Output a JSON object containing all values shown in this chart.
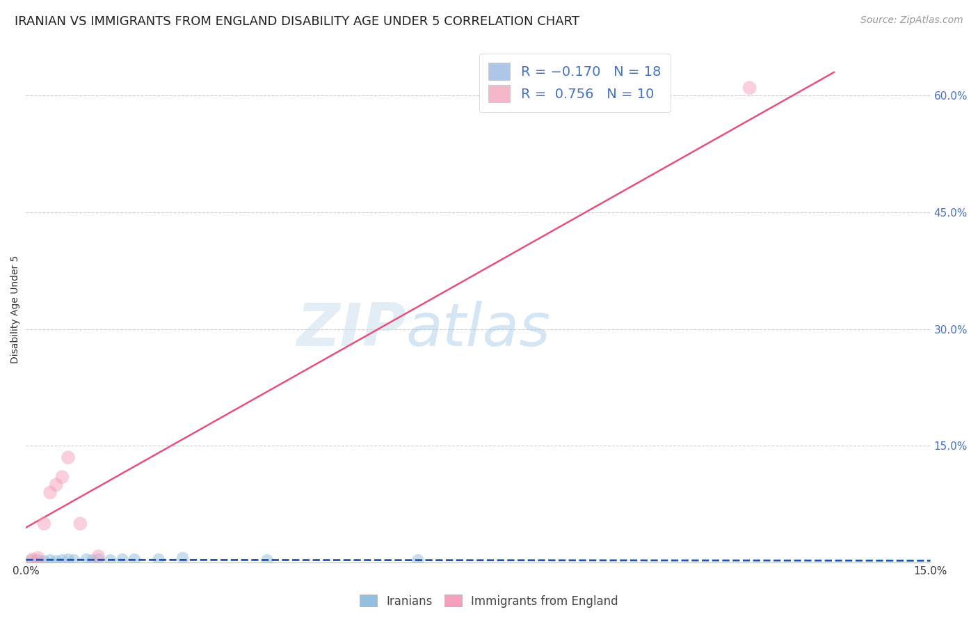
{
  "title": "IRANIAN VS IMMIGRANTS FROM ENGLAND DISABILITY AGE UNDER 5 CORRELATION CHART",
  "source": "Source: ZipAtlas.com",
  "ylabel": "Disability Age Under 5",
  "xlim": [
    0.0,
    0.15
  ],
  "ylim": [
    0.0,
    0.65
  ],
  "yticks": [
    0.0,
    0.15,
    0.3,
    0.45,
    0.6
  ],
  "ytick_labels": [
    "",
    "15.0%",
    "30.0%",
    "45.0%",
    "60.0%"
  ],
  "watermark_zip": "ZIP",
  "watermark_atlas": "atlas",
  "legend_entries": [
    {
      "label_r": "R = ",
      "label_val": "-0.170",
      "label_n": "   N = ",
      "label_nval": "18",
      "color": "#aec6e8"
    },
    {
      "label_r": "R =  ",
      "label_val": "0.756",
      "label_n": "   N = ",
      "label_nval": "10",
      "color": "#f4b8c8"
    }
  ],
  "iranians_color": "#93bfe0",
  "england_color": "#f4a0ba",
  "iranians_line_color": "#1a56b0",
  "england_line_color": "#e8507a",
  "background_color": "#ffffff",
  "grid_color": "#cccccc",
  "iranians_x": [
    0.001,
    0.002,
    0.003,
    0.004,
    0.005,
    0.006,
    0.007,
    0.008,
    0.01,
    0.011,
    0.012,
    0.014,
    0.016,
    0.018,
    0.022,
    0.026,
    0.04,
    0.065
  ],
  "iranians_y": [
    0.003,
    0.003,
    0.002,
    0.003,
    0.002,
    0.003,
    0.004,
    0.003,
    0.004,
    0.003,
    0.004,
    0.003,
    0.004,
    0.004,
    0.004,
    0.006,
    0.003,
    0.003
  ],
  "england_x": [
    0.001,
    0.002,
    0.003,
    0.004,
    0.005,
    0.006,
    0.007,
    0.009,
    0.012,
    0.12
  ],
  "england_y": [
    0.004,
    0.006,
    0.05,
    0.09,
    0.1,
    0.11,
    0.135,
    0.05,
    0.008,
    0.61
  ],
  "eng_trend_x": [
    0.0,
    0.134
  ],
  "eng_trend_y": [
    0.045,
    0.63
  ],
  "iran_trend_x": [
    0.0,
    0.15
  ],
  "iran_trend_y": [
    0.0035,
    0.0025
  ],
  "title_fontsize": 13,
  "source_fontsize": 10,
  "axis_label_fontsize": 10,
  "tick_fontsize": 11,
  "legend_fontsize": 14,
  "blue_text_color": "#4472c4",
  "pink_color": "#e85080"
}
